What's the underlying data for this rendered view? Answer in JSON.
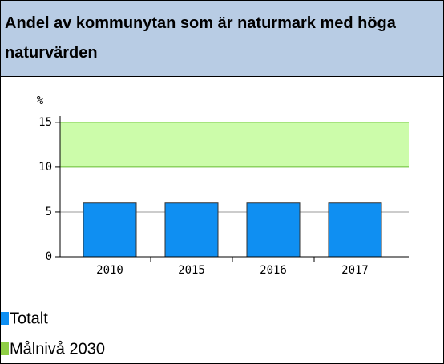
{
  "chart_data": {
    "type": "bar",
    "title": "Andel av kommunytan som är naturmark med höga naturvärden",
    "ylabel": "%",
    "categories": [
      "2010",
      "2015",
      "2016",
      "2017"
    ],
    "series": [
      {
        "name": "Totalt",
        "color": "#0f8ff2",
        "values": [
          6,
          6,
          6,
          6
        ]
      }
    ],
    "target": {
      "name": "Målnivå 2030",
      "color": "#8fce45",
      "line_color": "#66bb33",
      "fill": "#ccfcaa",
      "range": [
        10,
        15
      ]
    },
    "ylim": [
      0,
      15.7
    ],
    "yticks": [
      0,
      5,
      10,
      15
    ],
    "grid": true
  }
}
